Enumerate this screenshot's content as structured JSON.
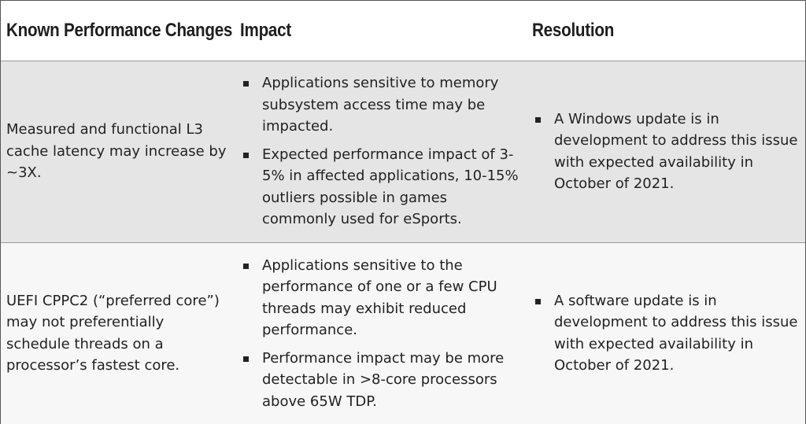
{
  "headers": {
    "change": "Known Performance Changes",
    "impact": "Impact",
    "resolution": "Resolution"
  },
  "rows": [
    {
      "change": "Measured and functional L3 cache latency may increase by ~3X.",
      "impact": [
        "Applications sensitive to memory subsystem access time may be impacted.",
        "Expected performance impact of 3-5% in affected applications, 10-15% outliers possible in games commonly used for eSports."
      ],
      "resolution": [
        "A Windows update is in development to address this issue with expected availability in October of 2021."
      ]
    },
    {
      "change": "UEFI CPPC2 (“preferred core”) may not preferentially schedule threads on a processor’s fastest core.",
      "impact": [
        "Applications sensitive to the performance of one or a few CPU threads may exhibit reduced performance.",
        "Performance impact may be more detectable in >8-core processors above 65W TDP."
      ],
      "resolution": [
        "A software update is in development to address this issue with expected availability in October of 2021."
      ]
    }
  ]
}
